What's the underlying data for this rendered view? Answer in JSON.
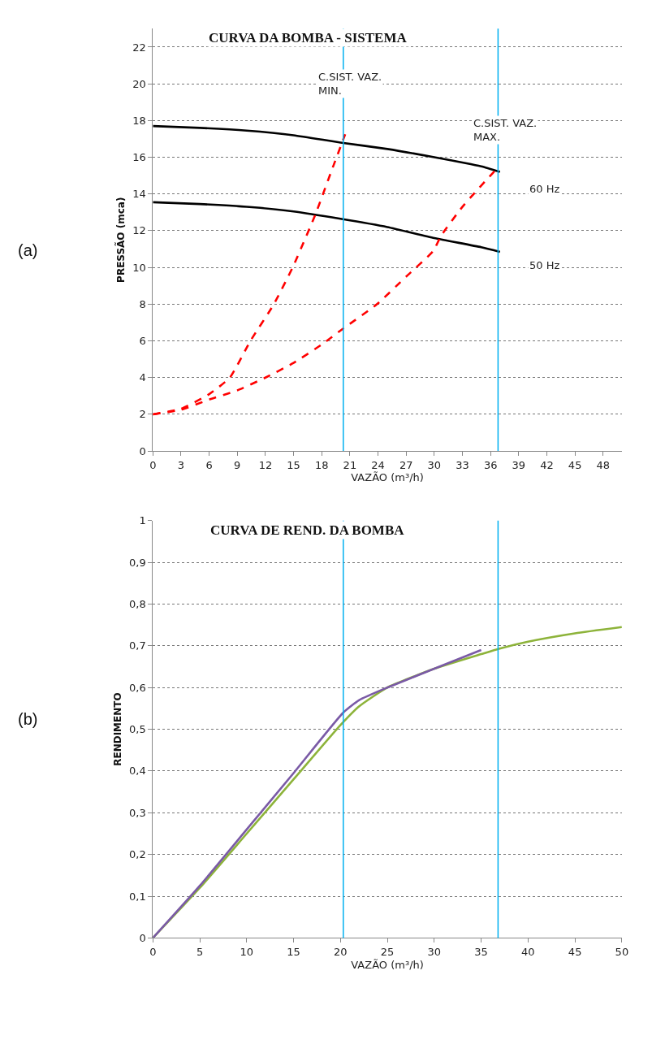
{
  "chart_data": [
    {
      "type": "line",
      "title": "CURVA DA BOMBA - SISTEMA",
      "xlabel": "VAZÃO (m³/h)",
      "ylabel": "PRESSÃO (mca)",
      "xlim": [
        0,
        50
      ],
      "xticks": [
        0,
        3,
        6,
        9,
        12,
        15,
        18,
        21,
        24,
        27,
        30,
        33,
        36,
        39,
        42,
        45,
        48
      ],
      "ylim": [
        0,
        23
      ],
      "yticks": [
        0,
        2,
        4,
        6,
        8,
        10,
        12,
        14,
        16,
        18,
        20,
        22
      ],
      "grid": "y",
      "series": [
        {
          "color": "#000000",
          "line_style": "solid",
          "x": [
            0,
            5,
            10,
            15,
            20,
            25,
            30,
            35,
            37
          ],
          "values": [
            17.7,
            17.6,
            17.45,
            17.2,
            16.8,
            16.45,
            16.0,
            15.5,
            15.2
          ]
        },
        {
          "color": "#000000",
          "line_style": "solid",
          "x": [
            0,
            5,
            10,
            15,
            20,
            25,
            30,
            35,
            37
          ],
          "values": [
            13.55,
            13.45,
            13.3,
            13.05,
            12.65,
            12.2,
            11.6,
            11.1,
            10.85
          ]
        },
        {
          "color": "#ff0000",
          "line_style": "dashed",
          "x": [
            0,
            3,
            6,
            8.2,
            10.4,
            12.9,
            14.9,
            17.3,
            19,
            20.5
          ],
          "values": [
            2,
            2.3,
            3.1,
            4,
            6,
            8,
            10,
            12.85,
            15.2,
            17.25
          ]
        },
        {
          "color": "#ff0000",
          "line_style": "dashed",
          "x": [
            0,
            3,
            6,
            9,
            12,
            15,
            18,
            20.1,
            23.9,
            27,
            29.9,
            30.7,
            33,
            36.7
          ],
          "values": [
            2,
            2.25,
            2.8,
            3.3,
            4.0,
            4.8,
            5.8,
            6.6,
            8.0,
            9.5,
            10.9,
            11.7,
            13.3,
            15.4
          ]
        }
      ],
      "ref_lines": [
        {
          "axis": "x",
          "value": 20.3,
          "color": "#00b0f0"
        },
        {
          "axis": "x",
          "value": 36.8,
          "color": "#00b0f0"
        }
      ],
      "annotations": [
        "(a)",
        "C.SIST. VAZ.\nMIN.",
        "C.SIST. VAZ.\nMAX.",
        "60 Hz",
        "50 Hz"
      ]
    },
    {
      "type": "line",
      "title": "CURVA DE REND. DA BOMBA",
      "xlabel": "VAZÃO (m³/h)",
      "ylabel": "RENDIMENTO",
      "xlim": [
        0,
        50
      ],
      "xticks": [
        0,
        5,
        10,
        15,
        20,
        25,
        30,
        35,
        40,
        45,
        50
      ],
      "ylim": [
        0,
        1
      ],
      "yticks": [
        0,
        {
          "value": 0.1,
          "label": "0,1"
        },
        {
          "value": 0.2,
          "label": "0,2"
        },
        {
          "value": 0.3,
          "label": "0,3"
        },
        {
          "value": 0.4,
          "label": "0,4"
        },
        {
          "value": 0.5,
          "label": "0,5"
        },
        {
          "value": 0.6,
          "label": "0,6"
        },
        {
          "value": 0.7,
          "label": "0,7"
        },
        {
          "value": 0.8,
          "label": "0,8"
        },
        {
          "value": 0.9,
          "label": "0,9"
        },
        1
      ],
      "grid": "y",
      "series": [
        {
          "color": "#8db33a",
          "line_style": "solid",
          "x": [
            0,
            5,
            10,
            15,
            20,
            22,
            25,
            30,
            35,
            36.9,
            40,
            45,
            50
          ],
          "values": [
            0,
            0.12,
            0.25,
            0.38,
            0.51,
            0.555,
            0.6,
            0.645,
            0.68,
            0.693,
            0.71,
            0.73,
            0.745
          ]
        },
        {
          "color": "#7a5aa6",
          "line_style": "solid",
          "x": [
            0,
            5,
            10,
            15,
            20.3,
            22,
            25,
            30,
            35
          ],
          "values": [
            0,
            0.125,
            0.26,
            0.395,
            0.54,
            0.57,
            0.6,
            0.645,
            0.69
          ]
        }
      ],
      "ref_lines": [
        {
          "axis": "x",
          "value": 20.3,
          "color": "#00b0f0"
        },
        {
          "axis": "x",
          "value": 36.8,
          "color": "#00b0f0"
        }
      ],
      "annotations": [
        "(b)"
      ]
    }
  ]
}
